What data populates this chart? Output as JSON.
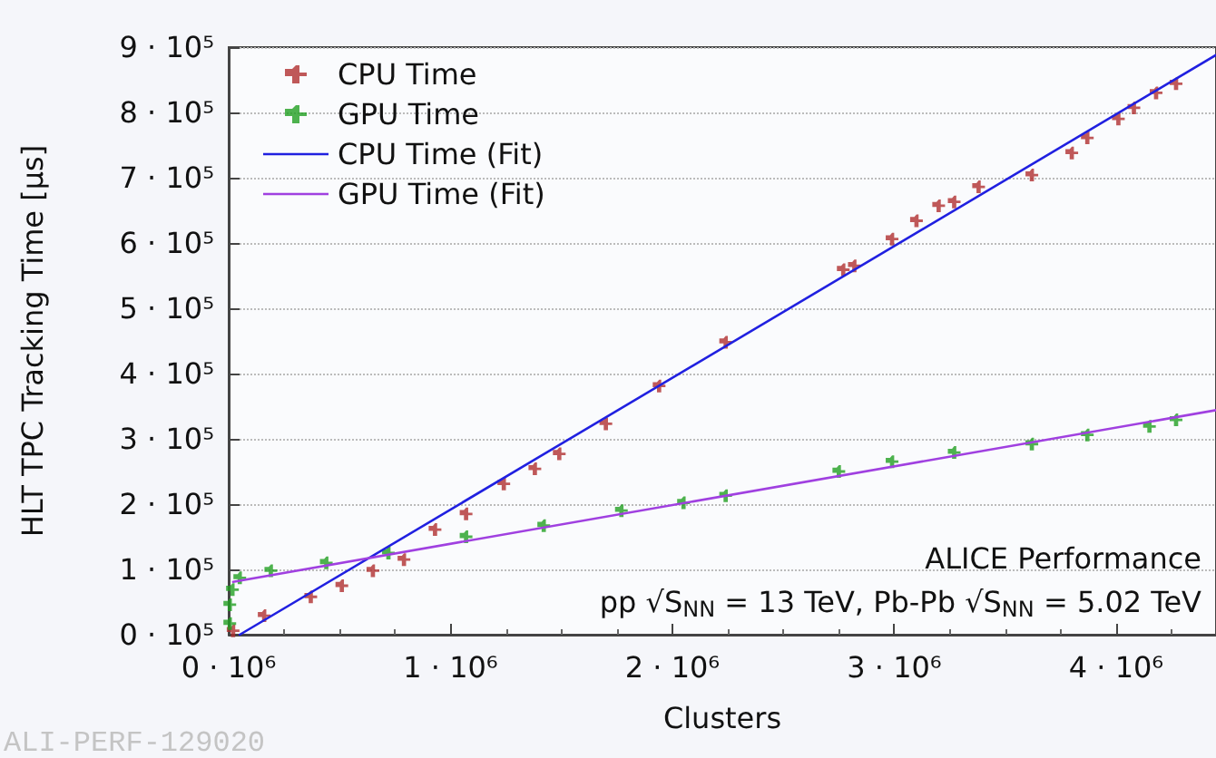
{
  "chart_data": {
    "type": "scatter",
    "xlabel": "Clusters",
    "ylabel": "HLT TPC Tracking Time [µs]",
    "annotations": [
      "ALICE Performance",
      "pp √S$_{NN}$ = 13 TeV, Pb-Pb √S$_{NN}$ = 5.02 TeV",
      "ALI-PERF-129020"
    ],
    "xlim": [
      0,
      4450000
    ],
    "ylim": [
      0,
      900000
    ],
    "xticks": [
      {
        "value": 0,
        "label": "0 · 10⁶"
      },
      {
        "value": 1000000,
        "label": "1 · 10⁶"
      },
      {
        "value": 2000000,
        "label": "2 · 10⁶"
      },
      {
        "value": 3000000,
        "label": "3 · 10⁶"
      },
      {
        "value": 4000000,
        "label": "4 · 10⁶"
      }
    ],
    "yticks": [
      {
        "value": 0,
        "label": "0 · 10⁵"
      },
      {
        "value": 100000,
        "label": "1 · 10⁵"
      },
      {
        "value": 200000,
        "label": "2 · 10⁵"
      },
      {
        "value": 300000,
        "label": "3 · 10⁵"
      },
      {
        "value": 400000,
        "label": "4 · 10⁵"
      },
      {
        "value": 500000,
        "label": "5 · 10⁵"
      },
      {
        "value": 600000,
        "label": "6 · 10⁵"
      },
      {
        "value": 700000,
        "label": "7 · 10⁵"
      },
      {
        "value": 800000,
        "label": "8 · 10⁵"
      },
      {
        "value": 900000,
        "label": "9 · 10⁵"
      }
    ],
    "grid": "y",
    "legend": "top left",
    "marker": "cross",
    "series": [
      {
        "name": "CPU Time",
        "color": "#b03030",
        "x": [
          20000,
          160000,
          370000,
          510000,
          650000,
          790000,
          930000,
          1070000,
          1240000,
          1380000,
          1490000,
          1700000,
          1940000,
          2240000,
          2770000,
          2820000,
          2990000,
          3100000,
          3200000,
          3270000,
          3380000,
          3620000,
          3800000,
          3870000,
          4010000,
          4080000,
          4180000,
          4270000
        ],
        "values": [
          6000,
          29000,
          58000,
          75000,
          98000,
          115000,
          161000,
          185000,
          231000,
          254000,
          277000,
          323000,
          381000,
          448000,
          559000,
          565000,
          606000,
          634000,
          657000,
          663000,
          686000,
          704000,
          738000,
          761000,
          790000,
          807000,
          830000,
          844000
        ]
      },
      {
        "name": "GPU Time",
        "color": "#22a022",
        "x": [
          5000,
          5000,
          17000,
          50000,
          190000,
          440000,
          720000,
          1070000,
          1420000,
          1770000,
          2050000,
          2240000,
          2750000,
          2990000,
          3270000,
          3620000,
          3870000,
          4150000,
          4270000
        ],
        "values": [
          17000,
          46000,
          69000,
          87000,
          98000,
          110000,
          125000,
          150000,
          167000,
          190000,
          202000,
          213000,
          250000,
          265000,
          279000,
          292000,
          306000,
          319000,
          329000
        ]
      },
      {
        "name": "CPU Time (Fit)",
        "type": "line",
        "marker": "none",
        "color": "#2020e0",
        "x": [
          50000,
          4450000
        ],
        "values": [
          0,
          888000
        ]
      },
      {
        "name": "GPU Time (Fit)",
        "type": "line",
        "marker": "none",
        "color": "#a040e0",
        "x": [
          20000,
          4450000
        ],
        "values": [
          81000,
          344000
        ]
      }
    ]
  }
}
